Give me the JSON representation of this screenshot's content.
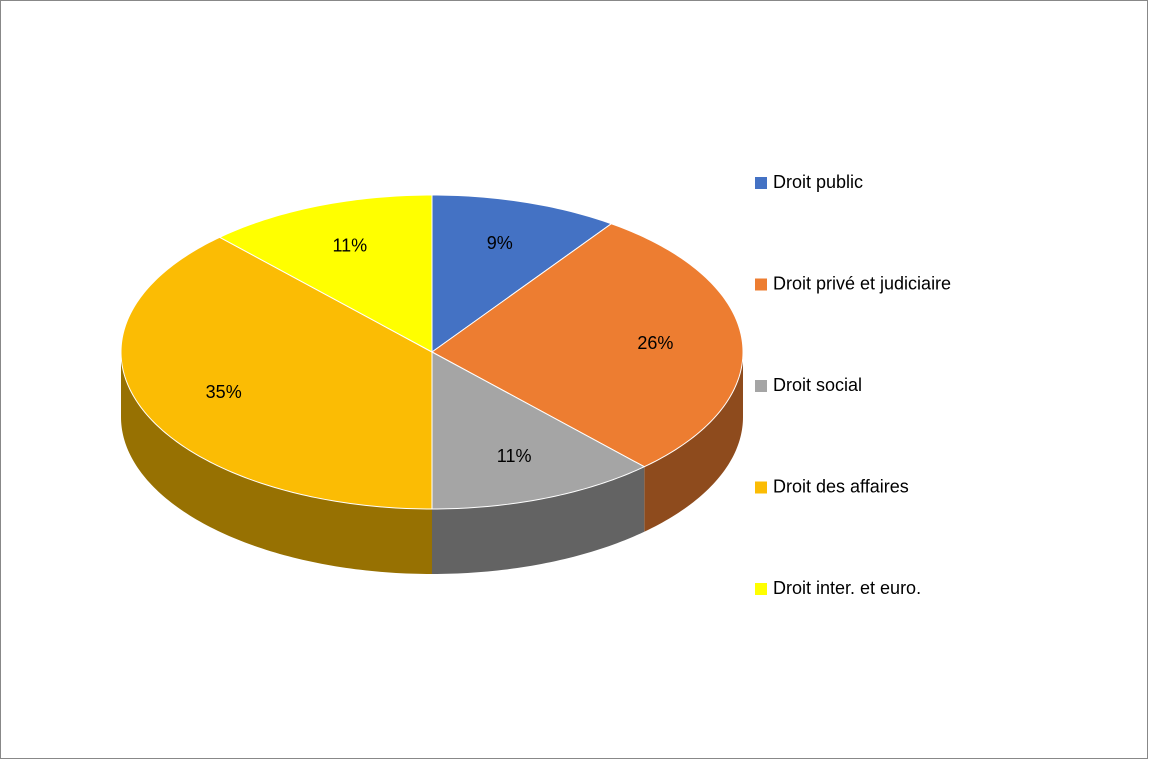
{
  "chart_data": {
    "type": "pie",
    "categories": [
      "Droit public",
      "Droit privé et judiciaire",
      "Droit social",
      "Droit des affaires",
      "Droit inter. et euro."
    ],
    "values": [
      9,
      26,
      11,
      35,
      11
    ],
    "value_labels": [
      "9%",
      "26%",
      "11%",
      "35%",
      "11%"
    ],
    "colors": [
      "#4472c4",
      "#ed7d31",
      "#a5a5a5",
      "#fbbc04",
      "#ffff00"
    ],
    "legend": "right"
  }
}
